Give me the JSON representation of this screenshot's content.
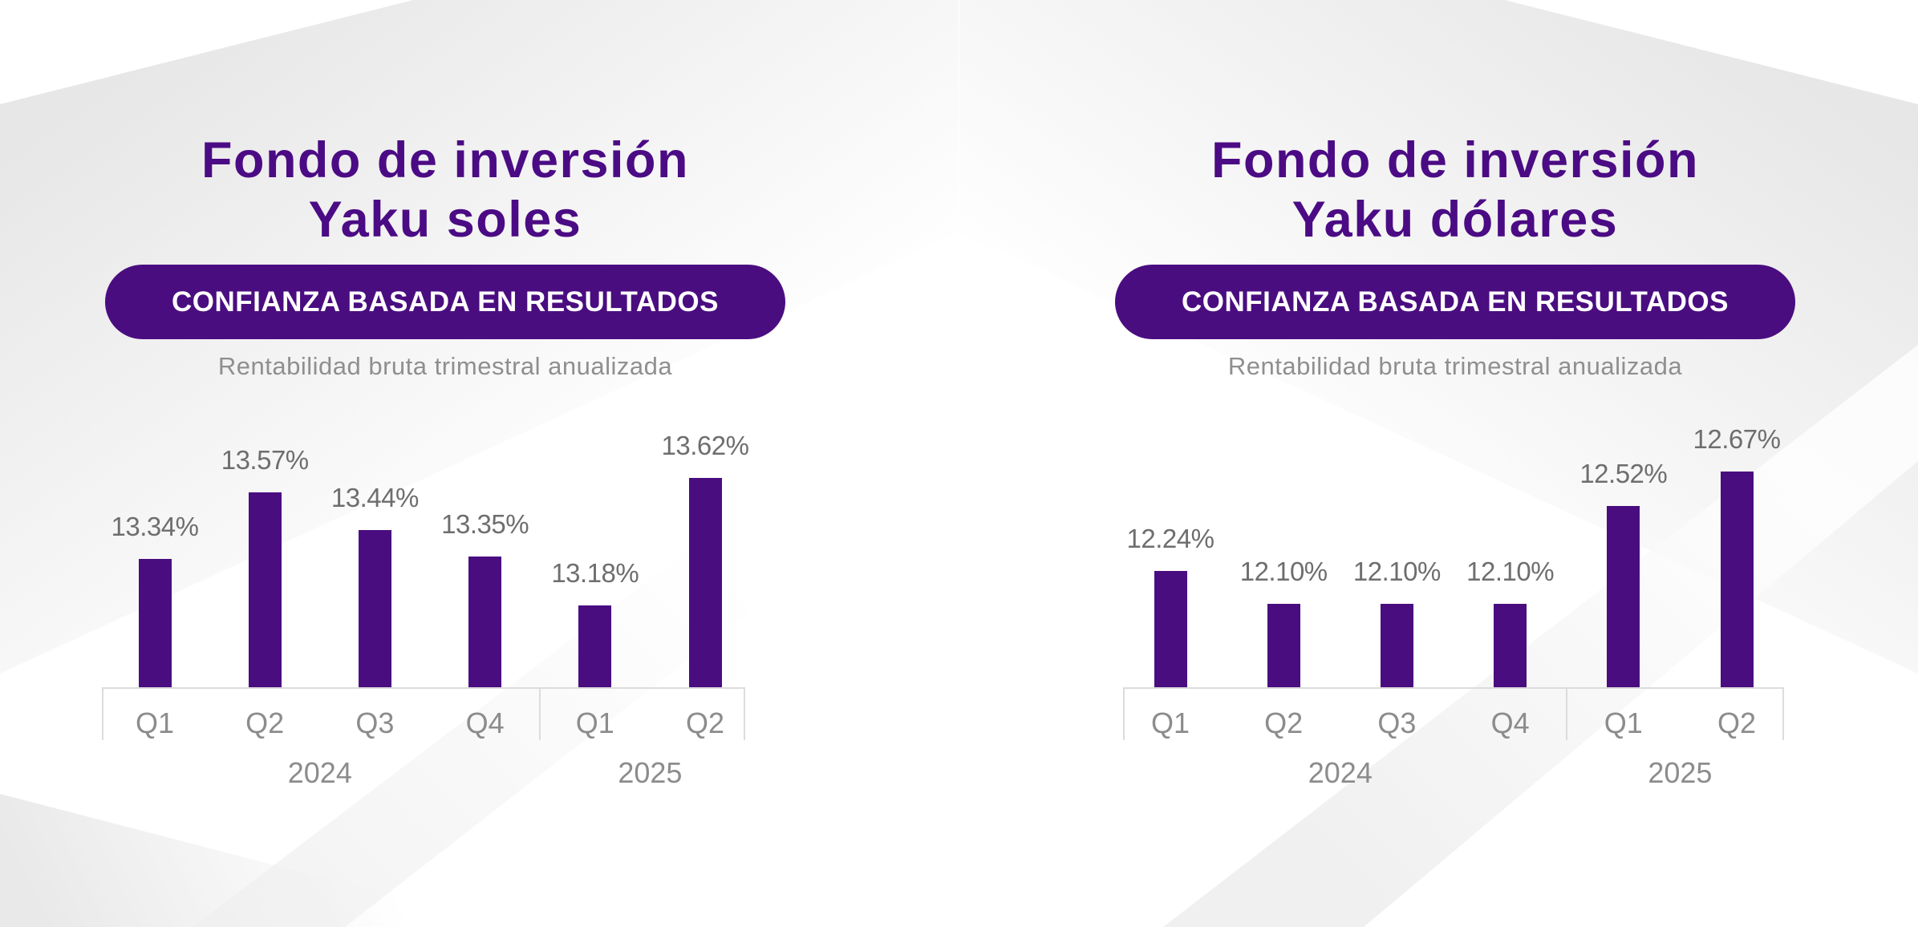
{
  "page": {
    "type": "infographic",
    "colors": {
      "accent_purple": "#4a0d80",
      "title_purple": "#4b0b84",
      "badge_text": "#ffffff",
      "value_gray": "#6e6e6e",
      "label_gray": "#8c8c8c",
      "subtitle_gray": "#8f8f8f",
      "axis_gray": "#dcdcdc",
      "background": "#ffffff",
      "swoosh_gray": "#e9e9e9"
    }
  },
  "panels": [
    {
      "title_line1": "Fondo de inversión",
      "title_line2": "Yaku soles",
      "badge_label": "CONFIANZA BASADA EN RESULTADOS",
      "subtitle": "Rentabilidad bruta trimestral anualizada"
    },
    {
      "title_line1": "Fondo de inversión",
      "title_line2": "Yaku dólares",
      "badge_label": "CONFIANZA BASADA EN RESULTADOS",
      "subtitle": "Rentabilidad bruta trimestral anualizada"
    }
  ],
  "chart_data": [
    {
      "type": "bar",
      "title": "Fondo de inversión Yaku soles",
      "subtitle": "Rentabilidad bruta trimestral anualizada",
      "categories": [
        "Q1",
        "Q2",
        "Q3",
        "Q4",
        "Q1",
        "Q2"
      ],
      "values": [
        13.34,
        13.57,
        13.44,
        13.35,
        13.18,
        13.62
      ],
      "value_labels": [
        "13.34%",
        "13.57%",
        "13.44%",
        "13.35%",
        "13.18%",
        "13.62%"
      ],
      "year_groups": [
        {
          "label": "2024",
          "span": [
            0,
            3
          ]
        },
        {
          "label": "2025",
          "span": [
            4,
            5
          ]
        }
      ],
      "xlabel": "",
      "ylabel": "",
      "ylim": [
        12.9,
        13.65
      ],
      "grid": false,
      "legend": false,
      "bar_color": "#4a0d80"
    },
    {
      "type": "bar",
      "title": "Fondo de inversión Yaku dólares",
      "subtitle": "Rentabilidad bruta trimestral anualizada",
      "categories": [
        "Q1",
        "Q2",
        "Q3",
        "Q4",
        "Q1",
        "Q2"
      ],
      "values": [
        12.24,
        12.1,
        12.1,
        12.1,
        12.52,
        12.67
      ],
      "value_labels": [
        "12.24%",
        "12.10%",
        "12.10%",
        "12.10%",
        "12.52%",
        "12.67%"
      ],
      "year_groups": [
        {
          "label": "2024",
          "span": [
            0,
            3
          ]
        },
        {
          "label": "2025",
          "span": [
            4,
            5
          ]
        }
      ],
      "xlabel": "",
      "ylabel": "",
      "ylim": [
        11.74,
        12.68
      ],
      "grid": false,
      "legend": false,
      "bar_color": "#4a0d80"
    }
  ]
}
